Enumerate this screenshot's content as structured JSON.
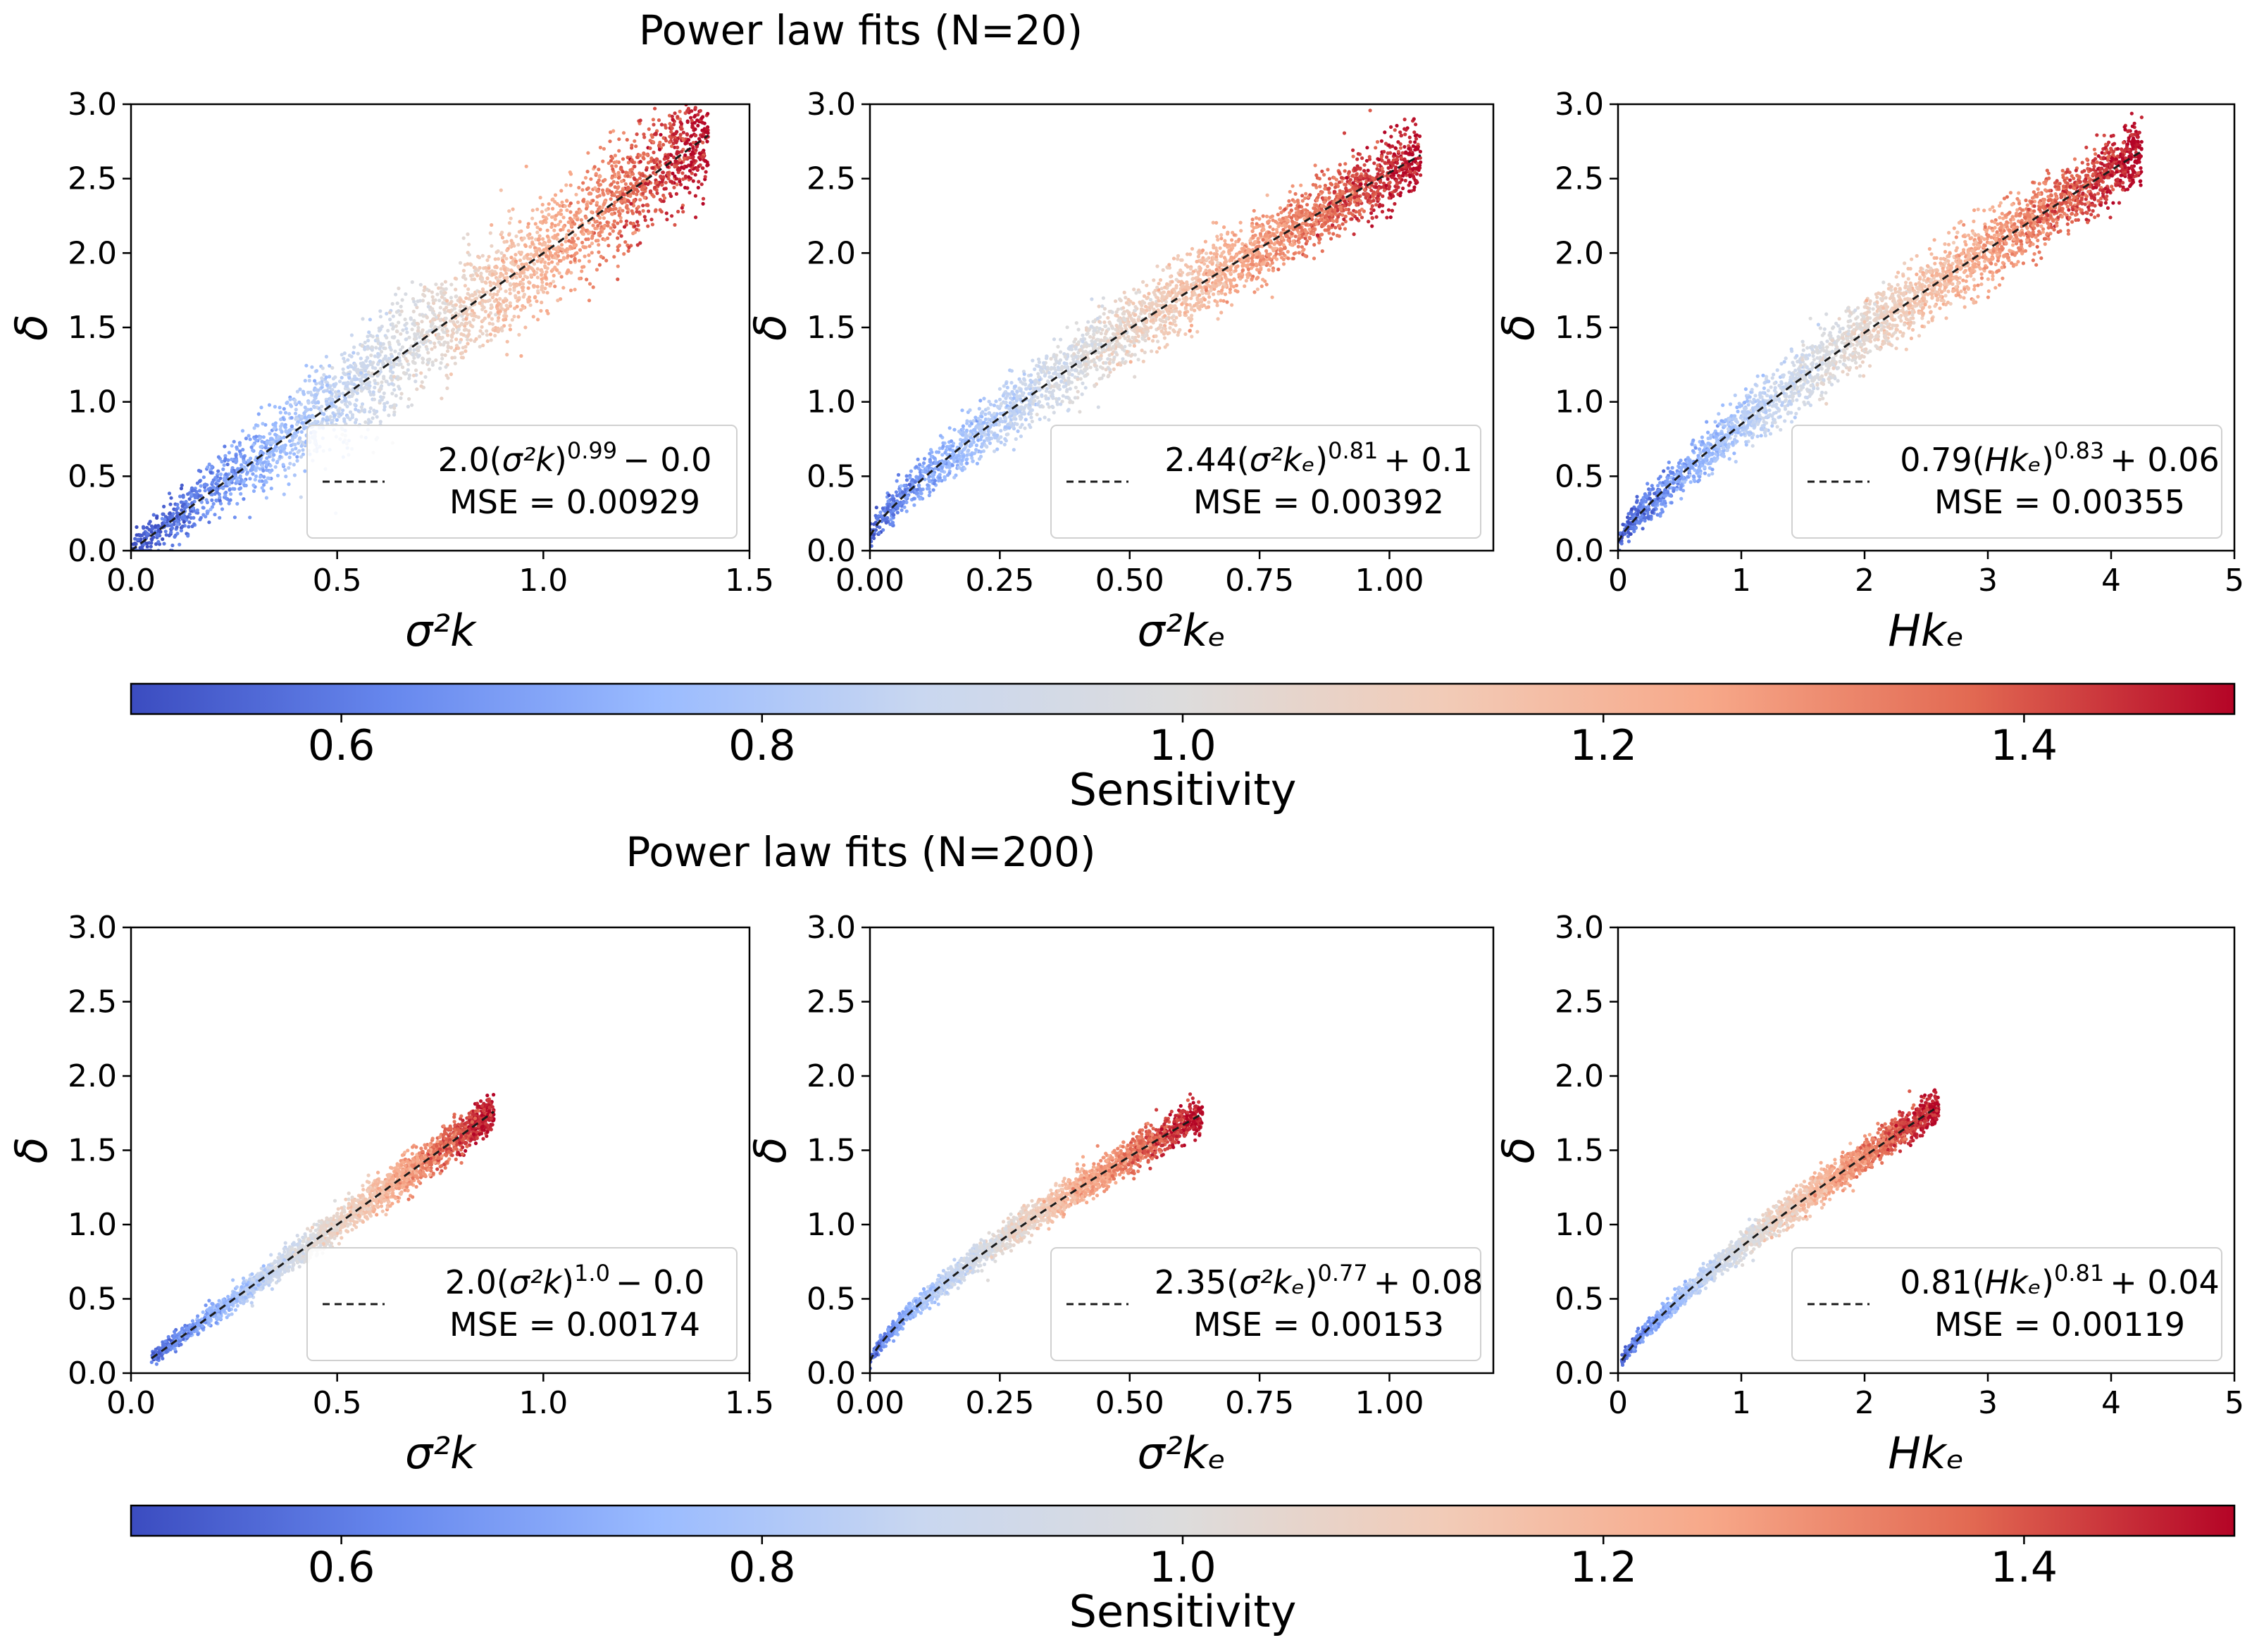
{
  "figure": {
    "suptitles": [
      "Power law fits (N=20)",
      "Power law fits (N=200)"
    ]
  },
  "colormap": {
    "name": "coolwarm",
    "stops": [
      "#3b4cc0",
      "#6788ee",
      "#9abbff",
      "#c9d7f0",
      "#dddcdc",
      "#f2cbb7",
      "#f7a889",
      "#e26952",
      "#b40426"
    ]
  },
  "colorbars": [
    {
      "label": "Sensitivity",
      "range": [
        0.5,
        1.5
      ],
      "ticks": [
        0.6,
        0.8,
        1.0,
        1.2,
        1.4
      ],
      "tick_labels": [
        "0.6",
        "0.8",
        "1.0",
        "1.2",
        "1.4"
      ]
    },
    {
      "label": "Sensitivity",
      "range": [
        0.5,
        1.5
      ],
      "ticks": [
        0.6,
        0.8,
        1.0,
        1.2,
        1.4
      ],
      "tick_labels": [
        "0.6",
        "0.8",
        "1.0",
        "1.2",
        "1.4"
      ]
    }
  ],
  "chart_data": [
    {
      "type": "scatter",
      "row": 0,
      "col": 0,
      "xlabel": "σ²k",
      "ylabel": "δ",
      "xlim": [
        0,
        1.5
      ],
      "ylim": [
        0,
        3.0
      ],
      "xticks": [
        0,
        0.5,
        1.0,
        1.5
      ],
      "xtick_labels": [
        "0.0",
        "0.5",
        "1.0",
        "1.5"
      ],
      "yticks": [
        0,
        0.5,
        1.0,
        1.5,
        2.0,
        2.5,
        3.0
      ],
      "ytick_labels": [
        "0.0",
        "0.5",
        "1.0",
        "1.5",
        "2.0",
        "2.5",
        "3.0"
      ],
      "legend": {
        "coef": "2.0",
        "base": "σ²k",
        "exponent": "0.99",
        "offset": "− 0.0",
        "mse": "MSE = 0.00929",
        "loc": "lower-right"
      },
      "fit": {
        "a": 2.0,
        "b": 0.99,
        "c": 0.0,
        "x_range": [
          0,
          1.4
        ]
      },
      "scatter": {
        "x_max": 1.4,
        "spread": 0.13,
        "n_points": 3200
      }
    },
    {
      "type": "scatter",
      "row": 0,
      "col": 1,
      "xlabel": "σ²kₑ",
      "ylabel": "δ",
      "xlim": [
        0,
        1.2
      ],
      "ylim": [
        0,
        3.0
      ],
      "xticks": [
        0,
        0.25,
        0.5,
        0.75,
        1.0
      ],
      "xtick_labels": [
        "0.00",
        "0.25",
        "0.50",
        "0.75",
        "1.00"
      ],
      "yticks": [
        0,
        0.5,
        1.0,
        1.5,
        2.0,
        2.5,
        3.0
      ],
      "ytick_labels": [
        "0.0",
        "0.5",
        "1.0",
        "1.5",
        "2.0",
        "2.5",
        "3.0"
      ],
      "legend": {
        "coef": "2.44",
        "base": "σ²kₑ",
        "exponent": "0.81",
        "offset": "+ 0.1",
        "mse": "MSE = 0.00392",
        "loc": "lower-right"
      },
      "fit": {
        "a": 2.44,
        "b": 0.81,
        "c": 0.1,
        "x_range": [
          0,
          1.06
        ]
      },
      "scatter": {
        "x_max": 1.06,
        "spread": 0.085,
        "n_points": 3200
      }
    },
    {
      "type": "scatter",
      "row": 0,
      "col": 2,
      "xlabel": "Hkₑ",
      "ylabel": "δ",
      "xlim": [
        0,
        5
      ],
      "ylim": [
        0,
        3.0
      ],
      "xticks": [
        0,
        1,
        2,
        3,
        4,
        5
      ],
      "xtick_labels": [
        "0",
        "1",
        "2",
        "3",
        "4",
        "5"
      ],
      "yticks": [
        0,
        0.5,
        1.0,
        1.5,
        2.0,
        2.5,
        3.0
      ],
      "ytick_labels": [
        "0.0",
        "0.5",
        "1.0",
        "1.5",
        "2.0",
        "2.5",
        "3.0"
      ],
      "legend": {
        "coef": "0.79",
        "base": "Hkₑ",
        "exponent": "0.83",
        "offset": "+ 0.06",
        "mse": "MSE = 0.00355",
        "loc": "lower-right"
      },
      "fit": {
        "a": 0.79,
        "b": 0.83,
        "c": 0.06,
        "x_range": [
          0,
          4.25
        ]
      },
      "scatter": {
        "x_max": 4.25,
        "spread": 0.08,
        "n_points": 3200
      }
    },
    {
      "type": "scatter",
      "row": 1,
      "col": 0,
      "xlabel": "σ²k",
      "ylabel": "δ",
      "xlim": [
        0,
        1.5
      ],
      "ylim": [
        0,
        3.0
      ],
      "xticks": [
        0,
        0.5,
        1.0,
        1.5
      ],
      "xtick_labels": [
        "0.0",
        "0.5",
        "1.0",
        "1.5"
      ],
      "yticks": [
        0,
        0.5,
        1.0,
        1.5,
        2.0,
        2.5,
        3.0
      ],
      "ytick_labels": [
        "0.0",
        "0.5",
        "1.0",
        "1.5",
        "2.0",
        "2.5",
        "3.0"
      ],
      "legend": {
        "coef": "2.0",
        "base": "σ²k",
        "exponent": "1.0",
        "offset": "− 0.0",
        "mse": "MSE = 0.00174",
        "loc": "lower-right"
      },
      "fit": {
        "a": 2.0,
        "b": 1.0,
        "c": 0.0,
        "x_range": [
          0.05,
          0.88
        ]
      },
      "scatter": {
        "x_min": 0.05,
        "x_max": 0.88,
        "spread": 0.045,
        "n_points": 2400
      }
    },
    {
      "type": "scatter",
      "row": 1,
      "col": 1,
      "xlabel": "σ²kₑ",
      "ylabel": "δ",
      "xlim": [
        0,
        1.2
      ],
      "ylim": [
        0,
        3.0
      ],
      "xticks": [
        0,
        0.25,
        0.5,
        0.75,
        1.0
      ],
      "xtick_labels": [
        "0.00",
        "0.25",
        "0.50",
        "0.75",
        "1.00"
      ],
      "yticks": [
        0,
        0.5,
        1.0,
        1.5,
        2.0,
        2.5,
        3.0
      ],
      "ytick_labels": [
        "0.0",
        "0.5",
        "1.0",
        "1.5",
        "2.0",
        "2.5",
        "3.0"
      ],
      "legend": {
        "coef": "2.35",
        "base": "σ²kₑ",
        "exponent": "0.77",
        "offset": "+ 0.08",
        "mse": "MSE = 0.00153",
        "loc": "lower-right"
      },
      "fit": {
        "a": 2.35,
        "b": 0.77,
        "c": 0.08,
        "x_range": [
          0,
          0.64
        ]
      },
      "scatter": {
        "x_max": 0.64,
        "spread": 0.04,
        "n_points": 2400
      }
    },
    {
      "type": "scatter",
      "row": 1,
      "col": 2,
      "xlabel": "Hkₑ",
      "ylabel": "δ",
      "xlim": [
        0,
        5
      ],
      "ylim": [
        0,
        3.0
      ],
      "xticks": [
        0,
        1,
        2,
        3,
        4,
        5
      ],
      "xtick_labels": [
        "0",
        "1",
        "2",
        "3",
        "4",
        "5"
      ],
      "yticks": [
        0,
        0.5,
        1.0,
        1.5,
        2.0,
        2.5,
        3.0
      ],
      "ytick_labels": [
        "0.0",
        "0.5",
        "1.0",
        "1.5",
        "2.0",
        "2.5",
        "3.0"
      ],
      "legend": {
        "coef": "0.81",
        "base": "Hkₑ",
        "exponent": "0.81",
        "offset": "+ 0.04",
        "mse": "MSE = 0.00119",
        "loc": "lower-right"
      },
      "fit": {
        "a": 0.81,
        "b": 0.81,
        "c": 0.04,
        "x_range": [
          0.03,
          2.6
        ]
      },
      "scatter": {
        "x_min": 0.03,
        "x_max": 2.6,
        "spread": 0.04,
        "n_points": 2400
      }
    }
  ]
}
